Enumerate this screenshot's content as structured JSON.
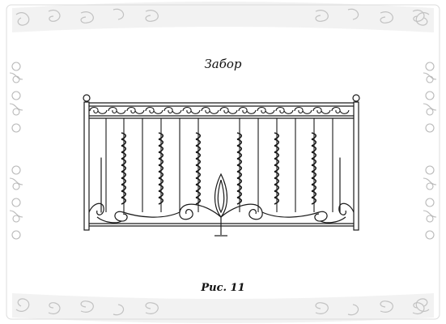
{
  "document": {
    "title": "Забор",
    "caption": "Рис. 11"
  },
  "colors": {
    "ink": "#1a1a1a",
    "ornament": "#c9c9c9",
    "ornament_dark": "#b3b3b3"
  },
  "icons": {
    "frame": "floral-scroll-border-icon",
    "drawing": "wrought-iron-fence-icon"
  }
}
